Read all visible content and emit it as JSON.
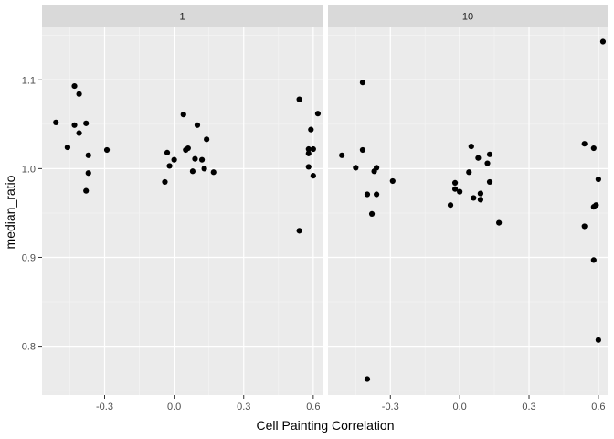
{
  "chart_data": {
    "type": "scatter",
    "xlabel": "Cell Painting Correlation",
    "ylabel": "median_ratio",
    "xlim": [
      -0.57,
      0.64
    ],
    "ylim": [
      0.745,
      1.16
    ],
    "x_ticks": [
      -0.3,
      0.0,
      0.3,
      0.6
    ],
    "x_tick_labels": [
      "-0.3",
      "0.0",
      "0.3",
      "0.6"
    ],
    "y_ticks": [
      0.8,
      0.9,
      1.0,
      1.1
    ],
    "y_tick_labels": [
      "0.8",
      "0.9",
      "1.0",
      "1.1"
    ],
    "grid": true,
    "point_color": "#000000",
    "panel_background": "#ebebeb",
    "strip_background": "#d9d9d9",
    "panels": [
      {
        "label": "1",
        "points": [
          {
            "x": -0.51,
            "y": 1.052
          },
          {
            "x": -0.46,
            "y": 1.024
          },
          {
            "x": -0.43,
            "y": 1.093
          },
          {
            "x": -0.41,
            "y": 1.084
          },
          {
            "x": -0.43,
            "y": 1.049
          },
          {
            "x": -0.41,
            "y": 1.04
          },
          {
            "x": -0.38,
            "y": 1.051
          },
          {
            "x": -0.37,
            "y": 1.015
          },
          {
            "x": -0.37,
            "y": 0.995
          },
          {
            "x": -0.38,
            "y": 0.975
          },
          {
            "x": -0.29,
            "y": 1.021
          },
          {
            "x": -0.04,
            "y": 0.985
          },
          {
            "x": -0.03,
            "y": 1.018
          },
          {
            "x": -0.02,
            "y": 1.003
          },
          {
            "x": 0.0,
            "y": 1.01
          },
          {
            "x": 0.04,
            "y": 1.061
          },
          {
            "x": 0.05,
            "y": 1.021
          },
          {
            "x": 0.06,
            "y": 1.023
          },
          {
            "x": 0.08,
            "y": 0.997
          },
          {
            "x": 0.09,
            "y": 1.011
          },
          {
            "x": 0.1,
            "y": 1.049
          },
          {
            "x": 0.12,
            "y": 1.01
          },
          {
            "x": 0.13,
            "y": 1.0
          },
          {
            "x": 0.14,
            "y": 1.033
          },
          {
            "x": 0.17,
            "y": 0.996
          },
          {
            "x": 0.54,
            "y": 1.078
          },
          {
            "x": 0.54,
            "y": 0.93
          },
          {
            "x": 0.58,
            "y": 1.022
          },
          {
            "x": 0.58,
            "y": 1.017
          },
          {
            "x": 0.58,
            "y": 1.002
          },
          {
            "x": 0.59,
            "y": 1.044
          },
          {
            "x": 0.6,
            "y": 1.022
          },
          {
            "x": 0.6,
            "y": 0.992
          },
          {
            "x": 0.62,
            "y": 1.062
          }
        ]
      },
      {
        "label": "10",
        "points": [
          {
            "x": -0.51,
            "y": 1.015
          },
          {
            "x": -0.45,
            "y": 1.001
          },
          {
            "x": -0.42,
            "y": 1.097
          },
          {
            "x": -0.42,
            "y": 1.021
          },
          {
            "x": -0.4,
            "y": 0.971
          },
          {
            "x": -0.38,
            "y": 0.949
          },
          {
            "x": -0.37,
            "y": 0.997
          },
          {
            "x": -0.36,
            "y": 1.001
          },
          {
            "x": -0.36,
            "y": 0.971
          },
          {
            "x": -0.4,
            "y": 0.763
          },
          {
            "x": -0.29,
            "y": 0.986
          },
          {
            "x": -0.04,
            "y": 0.959
          },
          {
            "x": -0.02,
            "y": 0.977
          },
          {
            "x": -0.02,
            "y": 0.984
          },
          {
            "x": 0.0,
            "y": 0.974
          },
          {
            "x": 0.04,
            "y": 0.996
          },
          {
            "x": 0.05,
            "y": 1.025
          },
          {
            "x": 0.06,
            "y": 0.967
          },
          {
            "x": 0.08,
            "y": 1.012
          },
          {
            "x": 0.09,
            "y": 0.972
          },
          {
            "x": 0.09,
            "y": 0.965
          },
          {
            "x": 0.12,
            "y": 1.006
          },
          {
            "x": 0.13,
            "y": 0.985
          },
          {
            "x": 0.13,
            "y": 1.016
          },
          {
            "x": 0.17,
            "y": 0.939
          },
          {
            "x": 0.54,
            "y": 1.028
          },
          {
            "x": 0.54,
            "y": 0.935
          },
          {
            "x": 0.58,
            "y": 1.023
          },
          {
            "x": 0.58,
            "y": 0.957
          },
          {
            "x": 0.59,
            "y": 0.959
          },
          {
            "x": 0.58,
            "y": 0.897
          },
          {
            "x": 0.6,
            "y": 0.988
          },
          {
            "x": 0.6,
            "y": 0.807
          },
          {
            "x": 0.62,
            "y": 1.143
          }
        ]
      }
    ]
  }
}
